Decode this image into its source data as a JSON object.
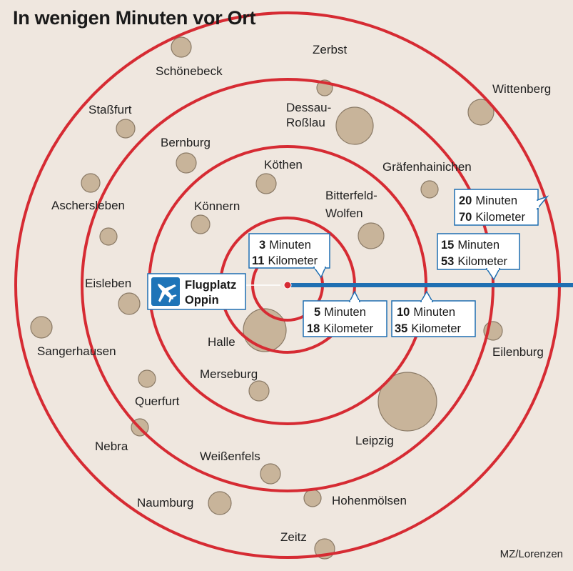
{
  "title": "In wenigen Minuten vor Ort",
  "credit": "MZ/Lorenzen",
  "airport": {
    "line1": "Flugplatz",
    "line2": "Oppin",
    "icon": "airplane-icon"
  },
  "colors": {
    "background": "#efe7df",
    "ring": "#d62b33",
    "route": "#1f6fb2",
    "city": "#c8b49a",
    "city_stroke": "#8a7a66",
    "airport_icon_bg": "#1e74b8"
  },
  "rings": [
    {
      "minutes_num": "3",
      "minutes_label": "Minuten",
      "km_num": "11",
      "km_label": "Kilometer"
    },
    {
      "minutes_num": "5",
      "minutes_label": "Minuten",
      "km_num": "18",
      "km_label": "Kilometer"
    },
    {
      "minutes_num": "10",
      "minutes_label": "Minuten",
      "km_num": "35",
      "km_label": "Kilometer"
    },
    {
      "minutes_num": "15",
      "minutes_label": "Minuten",
      "km_num": "53",
      "km_label": "Kilometer"
    },
    {
      "minutes_num": "20",
      "minutes_label": "Minuten",
      "km_num": "70",
      "km_label": "Kilometer"
    }
  ],
  "cities": [
    {
      "name": "Zerbst"
    },
    {
      "name": "Schönebeck"
    },
    {
      "name": "Wittenberg"
    },
    {
      "name": "Staßfurt"
    },
    {
      "name": "Dessau-"
    },
    {
      "name": "Roßlau"
    },
    {
      "name": "Bernburg"
    },
    {
      "name": "Köthen"
    },
    {
      "name": "Gräfenhainichen"
    },
    {
      "name": "Aschersleben"
    },
    {
      "name": "Bitterfeld-"
    },
    {
      "name": "Wolfen"
    },
    {
      "name": "Könnern"
    },
    {
      "name": "Eisleben"
    },
    {
      "name": "Halle"
    },
    {
      "name": "Sangerhausen"
    },
    {
      "name": "Eilenburg"
    },
    {
      "name": "Merseburg"
    },
    {
      "name": "Querfurt"
    },
    {
      "name": "Nebra"
    },
    {
      "name": "Leipzig"
    },
    {
      "name": "Weißenfels"
    },
    {
      "name": "Naumburg"
    },
    {
      "name": "Hohenmölsen"
    },
    {
      "name": "Zeitz"
    }
  ]
}
